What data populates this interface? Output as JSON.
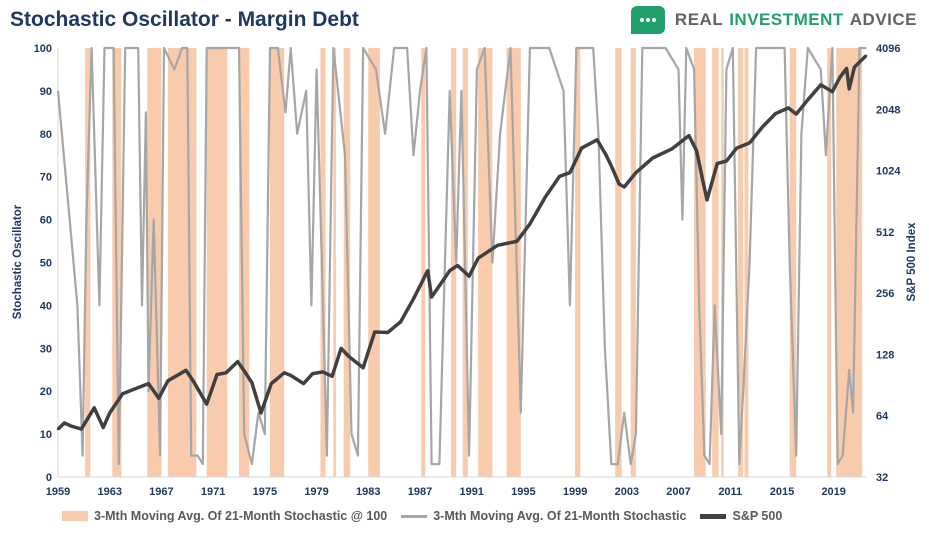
{
  "title": "Stochastic Oscillator - Margin Debt",
  "brand": {
    "words": [
      "REAL",
      "INVESTMENT",
      "ADVICE"
    ],
    "accent": "#22a06b",
    "icon": "chat-bubble-icon"
  },
  "colors": {
    "band": "#f8cbad",
    "stoch": "#a6a6a6",
    "sp500": "#404040",
    "axis_text": "#1f3864"
  },
  "chart_data": {
    "type": "line",
    "ylabel": "Stochastic Oscillator",
    "y2label": "S&P 500 Index",
    "ylim": [
      0,
      100
    ],
    "y_ticks": [
      "0",
      "10",
      "20",
      "30",
      "40",
      "50",
      "60",
      "70",
      "80",
      "90",
      "100"
    ],
    "y2_log2": true,
    "y2lim": [
      32,
      4096
    ],
    "y2_ticks": [
      "32",
      "64",
      "128",
      "256",
      "512",
      "1024",
      "2048",
      "4096"
    ],
    "xlim": [
      1959,
      2021.5
    ],
    "x_ticks": [
      "1959",
      "1963",
      "1967",
      "1971",
      "1975",
      "1979",
      "1983",
      "1987",
      "1991",
      "1995",
      "1999",
      "2003",
      "2007",
      "2011",
      "2015",
      "2019"
    ],
    "grid": false,
    "legend_position": "bottom",
    "series": [
      {
        "name": "3-Mth Moving Avg. Of 21-Month Stochastic @ 100",
        "kind": "band",
        "intervals": [
          [
            1961.1,
            1961.5
          ],
          [
            1963.2,
            1963.9
          ],
          [
            1965.9,
            1967.0
          ],
          [
            1967.5,
            1969.7
          ],
          [
            1970.5,
            1972.1
          ],
          [
            1973.0,
            1973.8
          ],
          [
            1975.4,
            1976.5
          ],
          [
            1979.3,
            1979.7
          ],
          [
            1980.3,
            1980.5
          ],
          [
            1981.1,
            1981.6
          ],
          [
            1983.0,
            1983.9
          ],
          [
            1987.1,
            1987.4
          ],
          [
            1989.4,
            1989.8
          ],
          [
            1990.3,
            1990.7
          ],
          [
            1991.5,
            1992.6
          ],
          [
            1993.7,
            1994.8
          ],
          [
            1999.0,
            1999.4
          ],
          [
            2002.1,
            2002.6
          ],
          [
            2003.3,
            2003.7
          ],
          [
            2008.2,
            2009.1
          ],
          [
            2009.6,
            2010.1
          ],
          [
            2010.3,
            2010.5
          ],
          [
            2011.6,
            2012.0
          ],
          [
            2012.1,
            2012.4
          ],
          [
            2015.6,
            2016.1
          ],
          [
            2018.5,
            2018.8
          ],
          [
            2019.2,
            2021.2
          ]
        ]
      },
      {
        "name": "3-Mth Moving Avg. Of 21-Month Stochastic",
        "kind": "stochastic",
        "points": [
          [
            1959.0,
            90
          ],
          [
            1960.5,
            40
          ],
          [
            1960.9,
            5
          ],
          [
            1961.2,
            60
          ],
          [
            1961.6,
            100
          ],
          [
            1962.2,
            40
          ],
          [
            1962.6,
            100
          ],
          [
            1963.3,
            100
          ],
          [
            1963.7,
            3
          ],
          [
            1964.2,
            100
          ],
          [
            1965.2,
            100
          ],
          [
            1965.5,
            40
          ],
          [
            1965.8,
            85
          ],
          [
            1966.0,
            20
          ],
          [
            1966.4,
            60
          ],
          [
            1966.9,
            5
          ],
          [
            1967.2,
            100
          ],
          [
            1968.0,
            95
          ],
          [
            1968.6,
            100
          ],
          [
            1969.0,
            100
          ],
          [
            1969.3,
            5
          ],
          [
            1969.8,
            5
          ],
          [
            1970.2,
            3
          ],
          [
            1970.5,
            100
          ],
          [
            1971.4,
            100
          ],
          [
            1972.4,
            100
          ],
          [
            1973.0,
            100
          ],
          [
            1973.4,
            10
          ],
          [
            1974.0,
            3
          ],
          [
            1974.5,
            15
          ],
          [
            1975.0,
            10
          ],
          [
            1975.4,
            100
          ],
          [
            1976.0,
            100
          ],
          [
            1976.6,
            85
          ],
          [
            1977.0,
            100
          ],
          [
            1977.5,
            80
          ],
          [
            1978.2,
            90
          ],
          [
            1978.6,
            40
          ],
          [
            1979.0,
            95
          ],
          [
            1979.5,
            40
          ],
          [
            1979.8,
            5
          ],
          [
            1980.3,
            100
          ],
          [
            1981.2,
            75
          ],
          [
            1981.7,
            10
          ],
          [
            1982.2,
            5
          ],
          [
            1982.6,
            100
          ],
          [
            1983.6,
            95
          ],
          [
            1984.3,
            80
          ],
          [
            1985.0,
            100
          ],
          [
            1986.0,
            100
          ],
          [
            1986.5,
            75
          ],
          [
            1987.0,
            90
          ],
          [
            1987.5,
            100
          ],
          [
            1987.9,
            3
          ],
          [
            1988.5,
            3
          ],
          [
            1989.3,
            90
          ],
          [
            1989.8,
            50
          ],
          [
            1990.2,
            90
          ],
          [
            1990.8,
            5
          ],
          [
            1991.4,
            95
          ],
          [
            1992.0,
            100
          ],
          [
            1992.6,
            50
          ],
          [
            1993.2,
            80
          ],
          [
            1994.0,
            100
          ],
          [
            1994.8,
            15
          ],
          [
            1995.5,
            100
          ],
          [
            1997.0,
            100
          ],
          [
            1998.1,
            90
          ],
          [
            1998.6,
            40
          ],
          [
            1999.1,
            100
          ],
          [
            2000.0,
            100
          ],
          [
            2000.4,
            100
          ],
          [
            2000.8,
            80
          ],
          [
            2001.3,
            30
          ],
          [
            2001.8,
            3
          ],
          [
            2002.3,
            3
          ],
          [
            2002.8,
            15
          ],
          [
            2003.3,
            3
          ],
          [
            2003.7,
            10
          ],
          [
            2004.2,
            100
          ],
          [
            2006.0,
            100
          ],
          [
            2007.0,
            95
          ],
          [
            2007.3,
            60
          ],
          [
            2007.6,
            100
          ],
          [
            2008.2,
            95
          ],
          [
            2008.6,
            40
          ],
          [
            2009.0,
            5
          ],
          [
            2009.4,
            3
          ],
          [
            2009.8,
            40
          ],
          [
            2010.3,
            10
          ],
          [
            2010.7,
            95
          ],
          [
            2011.2,
            100
          ],
          [
            2011.7,
            3
          ],
          [
            2012.0,
            20
          ],
          [
            2012.5,
            50
          ],
          [
            2013.0,
            100
          ],
          [
            2015.2,
            100
          ],
          [
            2015.6,
            50
          ],
          [
            2016.1,
            5
          ],
          [
            2016.5,
            80
          ],
          [
            2017.0,
            100
          ],
          [
            2018.0,
            95
          ],
          [
            2018.4,
            75
          ],
          [
            2018.9,
            100
          ],
          [
            2019.3,
            3
          ],
          [
            2019.7,
            5
          ],
          [
            2020.2,
            25
          ],
          [
            2020.5,
            15
          ],
          [
            2021.0,
            100
          ],
          [
            2021.5,
            100
          ]
        ]
      },
      {
        "name": "S&P 500",
        "kind": "sp500",
        "points": [
          [
            1959.0,
            55
          ],
          [
            1959.5,
            59
          ],
          [
            1960.0,
            57
          ],
          [
            1960.8,
            55
          ],
          [
            1961.8,
            70
          ],
          [
            1962.5,
            56
          ],
          [
            1963.0,
            66
          ],
          [
            1964.0,
            82
          ],
          [
            1965.0,
            87
          ],
          [
            1966.0,
            92
          ],
          [
            1966.8,
            78
          ],
          [
            1967.5,
            95
          ],
          [
            1968.9,
            107
          ],
          [
            1969.5,
            94
          ],
          [
            1970.5,
            73
          ],
          [
            1971.3,
            102
          ],
          [
            1972.0,
            104
          ],
          [
            1972.9,
            118
          ],
          [
            1973.5,
            104
          ],
          [
            1974.0,
            93
          ],
          [
            1974.7,
            66
          ],
          [
            1975.5,
            92
          ],
          [
            1976.5,
            104
          ],
          [
            1977.0,
            101
          ],
          [
            1978.0,
            92
          ],
          [
            1978.7,
            103
          ],
          [
            1979.5,
            105
          ],
          [
            1980.2,
            100
          ],
          [
            1980.9,
            137
          ],
          [
            1981.5,
            125
          ],
          [
            1982.6,
            110
          ],
          [
            1983.5,
            165
          ],
          [
            1984.5,
            164
          ],
          [
            1985.5,
            185
          ],
          [
            1986.5,
            240
          ],
          [
            1987.6,
            330
          ],
          [
            1987.9,
            245
          ],
          [
            1989.3,
            330
          ],
          [
            1989.9,
            350
          ],
          [
            1990.8,
            310
          ],
          [
            1991.5,
            380
          ],
          [
            1993.0,
            440
          ],
          [
            1994.5,
            460
          ],
          [
            1995.5,
            560
          ],
          [
            1996.7,
            760
          ],
          [
            1997.8,
            960
          ],
          [
            1998.6,
            1000
          ],
          [
            1999.5,
            1320
          ],
          [
            2000.7,
            1450
          ],
          [
            2001.4,
            1220
          ],
          [
            2001.8,
            1080
          ],
          [
            2002.4,
            880
          ],
          [
            2002.8,
            850
          ],
          [
            2003.7,
            1000
          ],
          [
            2005.0,
            1180
          ],
          [
            2006.5,
            1310
          ],
          [
            2007.8,
            1520
          ],
          [
            2008.4,
            1280
          ],
          [
            2008.9,
            900
          ],
          [
            2009.2,
            735
          ],
          [
            2010.0,
            1110
          ],
          [
            2010.7,
            1140
          ],
          [
            2011.5,
            1320
          ],
          [
            2012.5,
            1400
          ],
          [
            2013.5,
            1680
          ],
          [
            2014.5,
            1950
          ],
          [
            2015.5,
            2080
          ],
          [
            2016.1,
            1940
          ],
          [
            2017.0,
            2280
          ],
          [
            2018.0,
            2700
          ],
          [
            2018.9,
            2500
          ],
          [
            2019.5,
            2950
          ],
          [
            2020.0,
            3250
          ],
          [
            2020.2,
            2580
          ],
          [
            2020.6,
            3300
          ],
          [
            2021.5,
            3750
          ]
        ]
      }
    ]
  }
}
